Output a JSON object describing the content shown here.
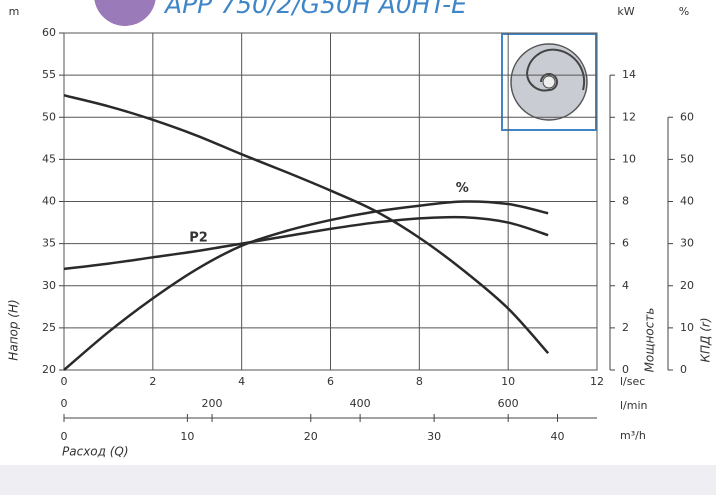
{
  "chart_data": {
    "type": "line",
    "title": "APP 750/2/G50H A0HT-E",
    "x": [
      0,
      1,
      2,
      3,
      4,
      5,
      6,
      7,
      8,
      9,
      10,
      10.9
    ],
    "xlim": [
      0,
      12
    ],
    "xticks": [
      0,
      2,
      4,
      6,
      8,
      10,
      12
    ],
    "xlabel": "l/sec",
    "x2lim": [
      0,
      720
    ],
    "x2ticks": [
      0,
      200,
      400,
      600
    ],
    "x2label": "l/min",
    "x3lim": [
      0,
      43.2
    ],
    "x3ticks": [
      0,
      10,
      20,
      30,
      40
    ],
    "x3label": "m³/h",
    "x_title": "Расход (Q)",
    "ylabel": "Напор (H)",
    "yunit": "m",
    "ylim": [
      20,
      60
    ],
    "yticks": [
      20,
      25,
      30,
      35,
      40,
      45,
      50,
      55,
      60
    ],
    "y2label": "Мощность",
    "y2unit": "kW",
    "y2lim": [
      0,
      14
    ],
    "y2ticks": [
      0,
      2,
      4,
      6,
      8,
      10,
      12,
      14
    ],
    "y3label": "КПД (r)",
    "y3unit": "%",
    "y3lim": [
      0,
      60
    ],
    "y3ticks": [
      0,
      10,
      20,
      30,
      40,
      50,
      60
    ],
    "grid": true,
    "series": [
      {
        "color": "#2a2a2a",
        "axis": "y",
        "values": [
          52.6,
          51.3,
          49.7,
          47.8,
          45.6,
          43.5,
          41.3,
          38.9,
          35.7,
          31.8,
          27.3,
          22.0
        ]
      },
      {
        "name": "P2",
        "color": "#2a2a2a",
        "axis": "y2",
        "values": [
          4.8,
          5.05,
          5.35,
          5.65,
          6.0,
          6.35,
          6.7,
          7.0,
          7.2,
          7.25,
          7.0,
          6.4
        ]
      },
      {
        "name": "%",
        "color": "#2a2a2a",
        "axis": "y3",
        "values": [
          0,
          9,
          17,
          24,
          29.5,
          33,
          35.6,
          37.6,
          39,
          40,
          39.4,
          37.2
        ]
      }
    ]
  }
}
